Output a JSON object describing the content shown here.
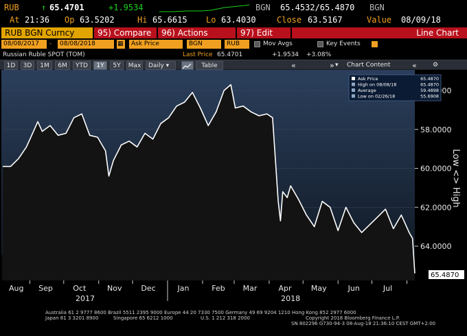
{
  "quote": {
    "ticker": "RUB",
    "arrow": "↑",
    "last": "65.4701",
    "change": "+1.9534",
    "bid_label": "BGN",
    "bid_ask": "65.4532/65.4870",
    "ask_label": "BGN",
    "at_label": "At",
    "at_time": "21:36",
    "open_label": "Op",
    "open": "63.5202",
    "high_label": "Hi",
    "high": "65.6615",
    "low_label": "Lo",
    "low": "63.4030",
    "close_label": "Close",
    "close": "63.5167",
    "value_label": "Value",
    "value_date": "08/09/18"
  },
  "command_bar": {
    "security": "RUB BGN Curncy",
    "compare": "95) Compare",
    "actions": "96) Actions",
    "edit": "97) Edit",
    "view": "Line Chart"
  },
  "settings": {
    "start_date": "08/08/2017",
    "dash": "-",
    "end_date": "08/08/2018",
    "field": "Ask Price",
    "source": "BGN",
    "currency": "RUB",
    "mov_avgs": "Mov Avgs",
    "key_events": "Key Events"
  },
  "subtitle": {
    "name": "Russian Ruble SPOT (TOM)",
    "last_price_label": "Last Price",
    "last_price": "65.4701",
    "change": "+1.9534",
    "change_pct": "+3.08%"
  },
  "toolbar": {
    "periods": [
      "1D",
      "3D",
      "1M",
      "6M",
      "YTD",
      "1Y",
      "5Y",
      "Max"
    ],
    "selected": "1Y",
    "frequency": "Daily",
    "table": "Table",
    "chart_content": "Chart Content"
  },
  "legend": {
    "rows": [
      {
        "label": "Ask Price",
        "value": "65.4870"
      },
      {
        "label": "High on 08/08/18",
        "value": "65.4870"
      },
      {
        "label": "Average",
        "value": "59.4898"
      },
      {
        "label": "Low on 02/26/18",
        "value": "55.6908"
      }
    ]
  },
  "axis_side_label": "Low <> High",
  "footer": {
    "line1": "Australia 61 2 9777 8600 Brazil 5511 2395 9000 Europe 44 20 7330 7500 Germany 49 69 9204 1210 Hong Kong 852 2977 6000",
    "line2a": "Japan 81 3 3201 8900",
    "line2b": "Singapore 65 6212 1000",
    "line2c": "U.S. 1 212 318 2000",
    "line2d": "Copyright 2018 Bloomberg Finance L.P.",
    "line3": "SN 802296 G730-94-3 08-Aug-18 21:36:10 CEST GMT+2:00"
  },
  "colors": {
    "background": "#000000",
    "amber": "#f0a020",
    "up_green": "#19d219",
    "command_red": "#b8101c",
    "plot_blue": "#2b3f5c",
    "line": "#ffffff"
  },
  "chart_data": {
    "type": "area",
    "title": "",
    "xlabel": "",
    "ylabel": "",
    "y_inverted": true,
    "ylim": [
      55.0,
      66.0
    ],
    "y_ticks": [
      "56.0000",
      "58.0000",
      "60.0000",
      "62.0000",
      "64.0000"
    ],
    "y_tick_values": [
      56,
      58,
      60,
      62,
      64
    ],
    "last_value_label": "65.4870",
    "month_labels": [
      "Aug",
      "Sep",
      "Oct",
      "Nov",
      "Dec",
      "Jan",
      "Feb",
      "Mar",
      "Apr",
      "May",
      "Jun",
      "Jul"
    ],
    "year_labels": [
      "2017",
      "2018"
    ],
    "grid": true,
    "series": [
      {
        "name": "Ask Price",
        "dates": [
          "2017-08-08",
          "2017-08-15",
          "2017-08-22",
          "2017-08-29",
          "2017-09-05",
          "2017-09-08",
          "2017-09-12",
          "2017-09-19",
          "2017-09-26",
          "2017-10-03",
          "2017-10-10",
          "2017-10-17",
          "2017-10-24",
          "2017-10-31",
          "2017-11-07",
          "2017-11-10",
          "2017-11-14",
          "2017-11-21",
          "2017-11-28",
          "2017-12-05",
          "2017-12-12",
          "2017-12-19",
          "2017-12-26",
          "2018-01-02",
          "2018-01-09",
          "2018-01-16",
          "2018-01-23",
          "2018-01-30",
          "2018-02-06",
          "2018-02-13",
          "2018-02-20",
          "2018-02-26",
          "2018-03-02",
          "2018-03-09",
          "2018-03-16",
          "2018-03-23",
          "2018-03-30",
          "2018-04-04",
          "2018-04-09",
          "2018-04-11",
          "2018-04-13",
          "2018-04-17",
          "2018-04-20",
          "2018-04-27",
          "2018-05-04",
          "2018-05-11",
          "2018-05-18",
          "2018-05-25",
          "2018-06-01",
          "2018-06-08",
          "2018-06-15",
          "2018-06-22",
          "2018-06-29",
          "2018-07-06",
          "2018-07-13",
          "2018-07-20",
          "2018-07-27",
          "2018-08-03",
          "2018-08-06",
          "2018-08-08"
        ],
        "values": [
          59.9,
          59.9,
          59.5,
          58.9,
          58.0,
          57.6,
          58.1,
          57.8,
          58.3,
          58.2,
          57.4,
          57.2,
          58.3,
          58.4,
          59.1,
          60.4,
          59.6,
          58.8,
          58.6,
          58.9,
          58.2,
          58.5,
          57.7,
          57.4,
          56.8,
          56.6,
          56.1,
          56.9,
          57.8,
          57.1,
          56.0,
          55.7,
          56.9,
          56.8,
          57.1,
          57.3,
          57.2,
          57.4,
          61.7,
          62.7,
          61.2,
          61.5,
          60.9,
          61.6,
          62.4,
          63.0,
          61.7,
          62.0,
          63.2,
          62.0,
          62.8,
          63.3,
          62.9,
          62.5,
          62.1,
          63.1,
          62.4,
          63.3,
          63.6,
          65.4
        ]
      }
    ]
  }
}
